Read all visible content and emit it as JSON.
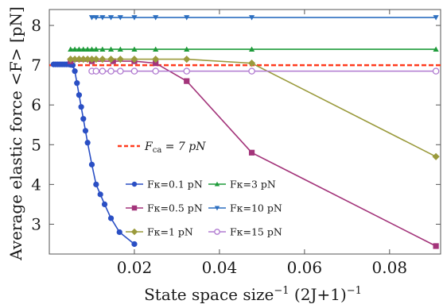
{
  "chart_data": {
    "type": "line",
    "xlabel": "State space size",
    "xlabel_exp1": "−1",
    "xlabel_mid": " (2J+1)",
    "xlabel_exp2": "−1",
    "ylabel": "Average elastic force <F> [pN]",
    "xlim": [
      0,
      0.092
    ],
    "ylim": [
      2.25,
      8.4
    ],
    "xticks": [
      0.02,
      0.04,
      0.06,
      0.08
    ],
    "xtick_labels": [
      "0.02",
      "0.04",
      "0.06",
      "0.08"
    ],
    "yticks": [
      3,
      4,
      5,
      6,
      7,
      8
    ],
    "ytick_labels": [
      "3",
      "4",
      "5",
      "6",
      "7",
      "8"
    ],
    "reference_line": {
      "y": 7.0,
      "label_main": "F",
      "label_sub": "ca",
      "label_rest": " = 7 pN",
      "color": "#ff3b1f"
    },
    "legend_position": "bottom-center",
    "series": [
      {
        "name": "Fκ=0.1 pN",
        "color": "#2a4fc4",
        "marker": "circle",
        "x": [
          0.001,
          0.0015,
          0.002,
          0.0025,
          0.003,
          0.0035,
          0.004,
          0.0045,
          0.005,
          0.0055,
          0.006,
          0.0065,
          0.007,
          0.0075,
          0.008,
          0.0085,
          0.009,
          0.01,
          0.011,
          0.012,
          0.013,
          0.0145,
          0.0165,
          0.02
        ],
        "y": [
          7.02,
          7.02,
          7.02,
          7.02,
          7.02,
          7.02,
          7.02,
          7.02,
          7.01,
          7.0,
          6.85,
          6.55,
          6.25,
          5.95,
          5.65,
          5.35,
          5.05,
          4.5,
          4.0,
          3.75,
          3.5,
          3.15,
          2.8,
          2.5
        ]
      },
      {
        "name": "Fκ=0.5 pN",
        "color": "#a3347a",
        "marker": "square",
        "x": [
          0.005,
          0.01,
          0.015,
          0.02,
          0.025,
          0.0323,
          0.0476,
          0.0909
        ],
        "y": [
          7.1,
          7.1,
          7.1,
          7.1,
          7.05,
          6.6,
          4.8,
          2.45
        ]
      },
      {
        "name": "Fκ=1 pN",
        "color": "#9a9a3c",
        "marker": "diamond",
        "x": [
          0.005,
          0.006,
          0.007,
          0.008,
          0.009,
          0.01,
          0.011,
          0.0125,
          0.0145,
          0.0167,
          0.02,
          0.025,
          0.0323,
          0.0476,
          0.0909
        ],
        "y": [
          7.15,
          7.15,
          7.15,
          7.15,
          7.15,
          7.15,
          7.15,
          7.15,
          7.15,
          7.15,
          7.15,
          7.15,
          7.15,
          7.05,
          4.7
        ]
      },
      {
        "name": "Fκ=3 pN",
        "color": "#1e9b3a",
        "marker": "triangle-up",
        "x": [
          0.005,
          0.006,
          0.007,
          0.008,
          0.009,
          0.01,
          0.011,
          0.0125,
          0.0145,
          0.0167,
          0.02,
          0.025,
          0.0323,
          0.0476,
          0.0909
        ],
        "y": [
          7.4,
          7.4,
          7.4,
          7.4,
          7.4,
          7.4,
          7.4,
          7.4,
          7.4,
          7.4,
          7.4,
          7.4,
          7.4,
          7.4,
          7.4
        ]
      },
      {
        "name": "Fκ=10 pN",
        "color": "#2d6fc0",
        "marker": "triangle-down",
        "x": [
          0.01,
          0.011,
          0.0125,
          0.0145,
          0.0167,
          0.02,
          0.025,
          0.0323,
          0.0476,
          0.0909
        ],
        "y": [
          8.2,
          8.2,
          8.2,
          8.2,
          8.2,
          8.2,
          8.2,
          8.2,
          8.2,
          8.2
        ]
      },
      {
        "name": "Fκ=15 pN",
        "color": "#b07ad0",
        "marker": "open-circle",
        "x": [
          0.01,
          0.011,
          0.0125,
          0.0145,
          0.0167,
          0.02,
          0.025,
          0.0323,
          0.0476,
          0.0909
        ],
        "y": [
          6.85,
          6.85,
          6.85,
          6.85,
          6.85,
          6.85,
          6.85,
          6.85,
          6.85,
          6.85
        ]
      }
    ]
  }
}
